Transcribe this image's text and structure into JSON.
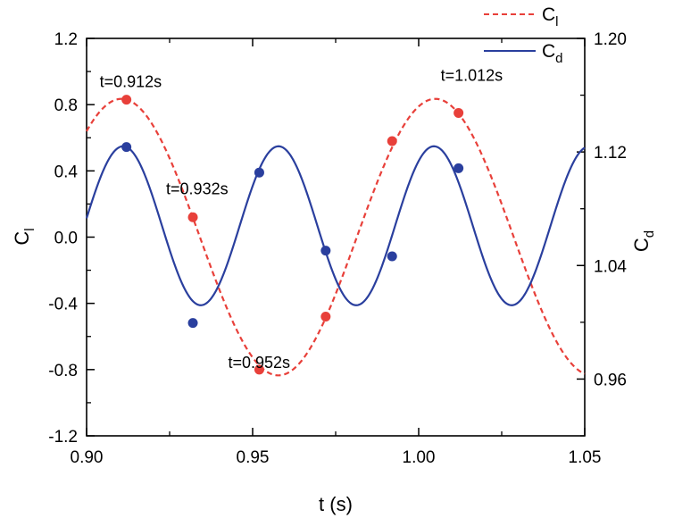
{
  "chart_data": {
    "type": "line",
    "xlabel": "t (s)",
    "xlim": [
      0.9,
      1.05
    ],
    "xticks": [
      "0.90",
      "0.95",
      "1.00",
      "1.05"
    ],
    "left_axis": {
      "label_main": "C",
      "label_sub": "l",
      "ylim": [
        -1.2,
        1.2
      ],
      "ticks": [
        "-1.2",
        "-0.8",
        "-0.4",
        "0.0",
        "0.4",
        "0.8",
        "1.2"
      ]
    },
    "right_axis": {
      "label_main": "C",
      "label_sub": "d",
      "ylim": [
        0.92,
        1.2
      ],
      "ticks": [
        "0.96",
        "1.04",
        "1.12",
        "1.20"
      ]
    },
    "series": [
      {
        "name_main": "C",
        "name_sub": "l",
        "axis": "left",
        "style": "dashed",
        "color": "#e8403a",
        "mean": 0.0,
        "amplitude": 0.835,
        "period": 0.0945,
        "peak_t": 0.9105,
        "markers": [
          {
            "t": 0.912,
            "v": 0.83
          },
          {
            "t": 0.932,
            "v": 0.12
          },
          {
            "t": 0.952,
            "v": -0.8
          },
          {
            "t": 0.972,
            "v": -0.48
          },
          {
            "t": 0.992,
            "v": 0.58
          },
          {
            "t": 1.012,
            "v": 0.75
          }
        ]
      },
      {
        "name_main": "C",
        "name_sub": "d",
        "axis": "right",
        "style": "solid",
        "color": "#2a3f9e",
        "mean": 1.068,
        "amplitude": 0.056,
        "period": 0.0468,
        "peak_t": 0.911,
        "markers": [
          {
            "t": 0.912,
            "v": 1.1235
          },
          {
            "t": 0.932,
            "v": 0.9995
          },
          {
            "t": 0.952,
            "v": 1.1055
          },
          {
            "t": 0.972,
            "v": 1.0505
          },
          {
            "t": 0.992,
            "v": 1.0465
          },
          {
            "t": 1.012,
            "v": 1.1085
          }
        ]
      }
    ],
    "annotations": [
      {
        "text": "t=0.912s",
        "t": 0.912,
        "v": 0.83
      },
      {
        "text": "t=0.932s",
        "t": 0.932,
        "v": 0.12
      },
      {
        "text": "t=0.952s",
        "t": 0.952,
        "v": -0.8
      },
      {
        "text": "t=1.012s",
        "t": 1.012,
        "v": 0.75
      }
    ],
    "legend_position": "top-right"
  }
}
